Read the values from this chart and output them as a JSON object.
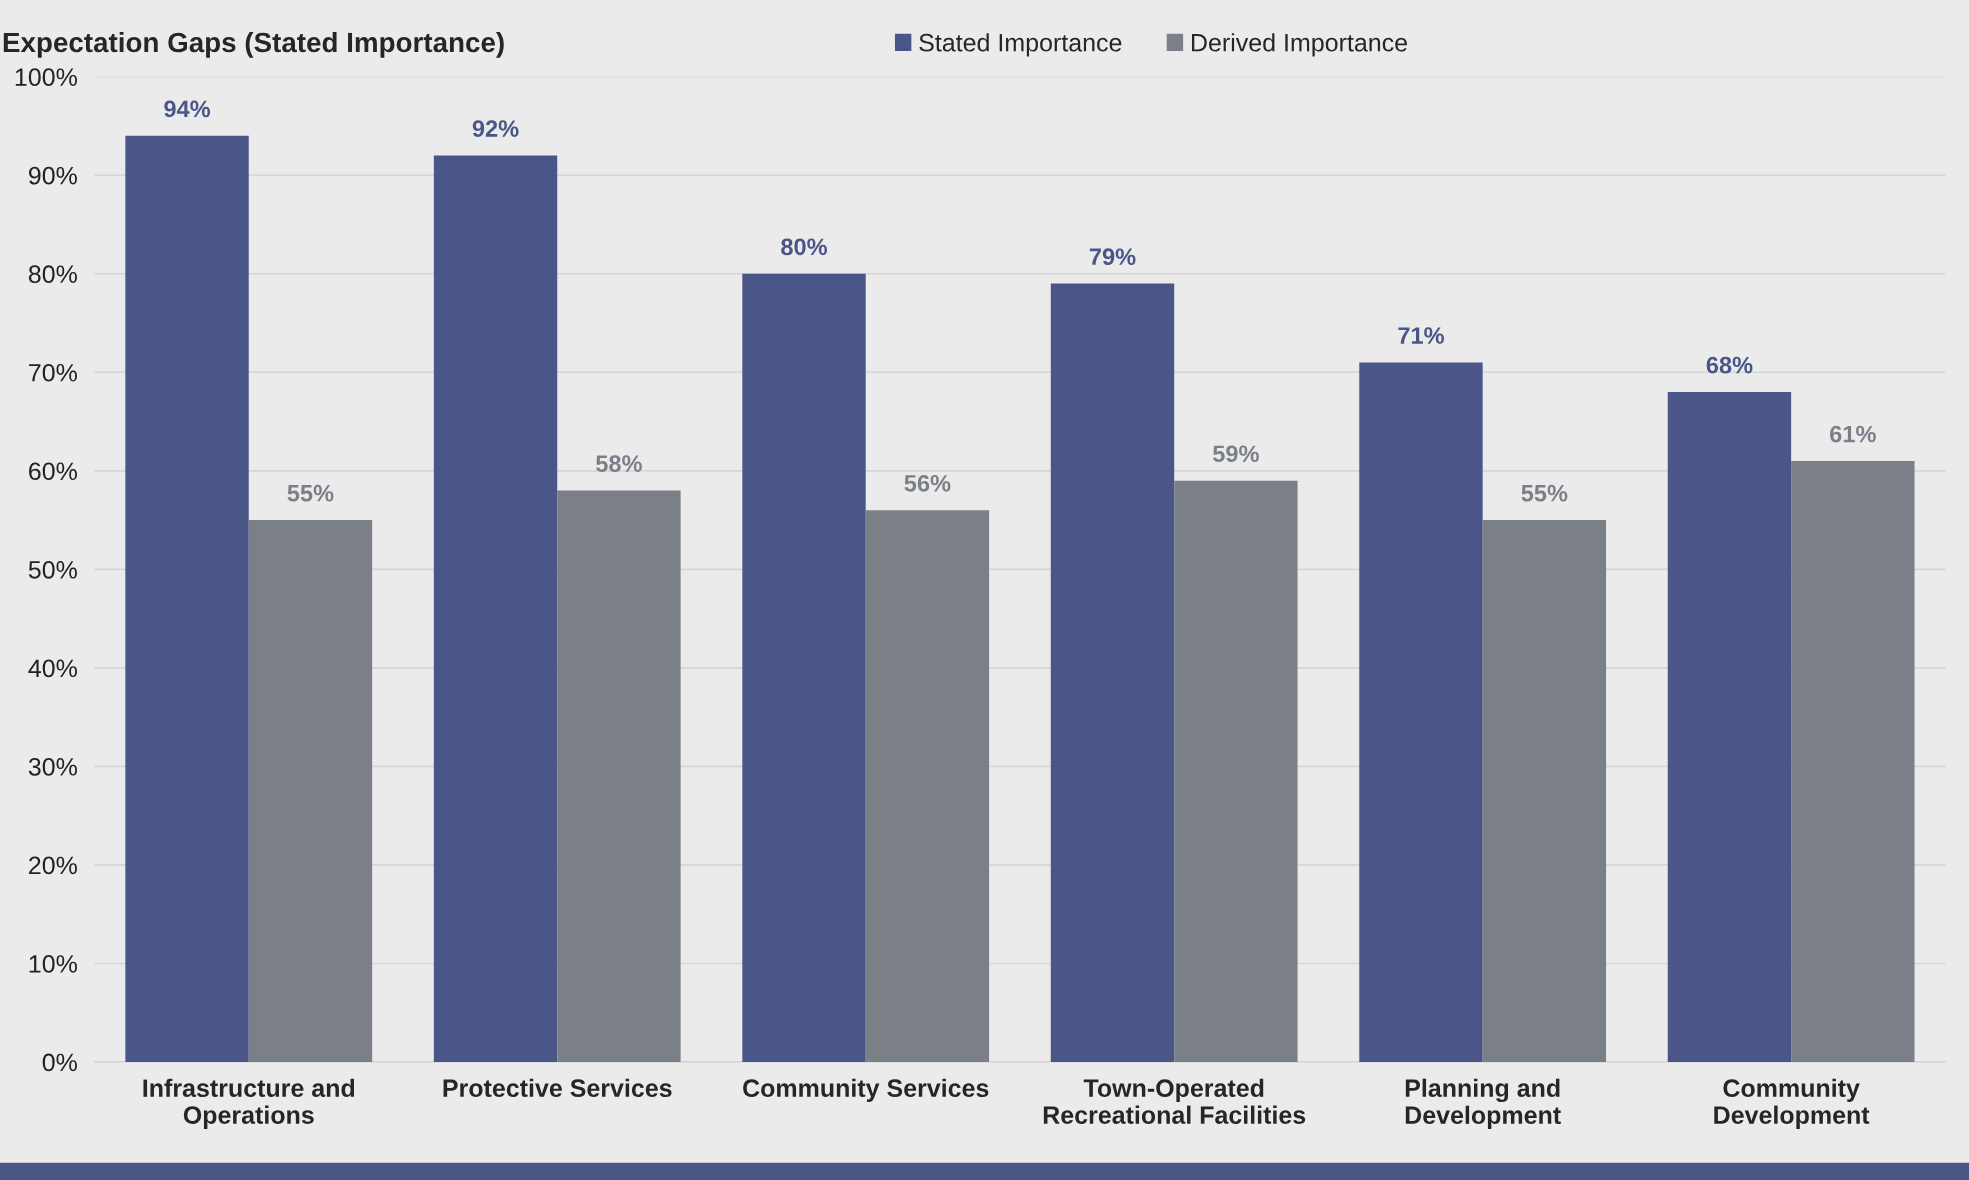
{
  "chart_data": {
    "type": "bar",
    "title": "Expectation Gaps (Stated Importance)",
    "categories": [
      "Infrastructure and\nOperations",
      "Protective Services",
      "Community Services",
      "Town-Operated\nRecreational Facilities",
      "Planning and\nDevelopment",
      "Community\nDevelopment"
    ],
    "series": [
      {
        "name": "Stated Importance",
        "color": "#4a5688",
        "values": [
          94,
          92,
          80,
          79,
          71,
          68
        ],
        "value_labels": [
          "94%",
          "92%",
          "80%",
          "79%",
          "71%",
          "68%"
        ]
      },
      {
        "name": "Derived Importance",
        "color": "#7b7f88",
        "values": [
          55,
          58,
          56,
          59,
          55,
          61
        ],
        "value_labels": [
          "55%",
          "58%",
          "56%",
          "59%",
          "55%",
          "61%"
        ]
      }
    ],
    "ylim": [
      0,
      100
    ],
    "yticks": [
      {
        "value": 0,
        "label": "0%"
      },
      {
        "value": 10,
        "label": "10%"
      },
      {
        "value": 20,
        "label": "20%"
      },
      {
        "value": 30,
        "label": "30%"
      },
      {
        "value": 40,
        "label": "40%"
      },
      {
        "value": 50,
        "label": "50%"
      },
      {
        "value": 60,
        "label": "60%"
      },
      {
        "value": 70,
        "label": "70%"
      },
      {
        "value": 80,
        "label": "80%"
      },
      {
        "value": 90,
        "label": "90%"
      },
      {
        "value": 100,
        "label": "100%"
      }
    ],
    "grid": "y",
    "legend": "top"
  }
}
